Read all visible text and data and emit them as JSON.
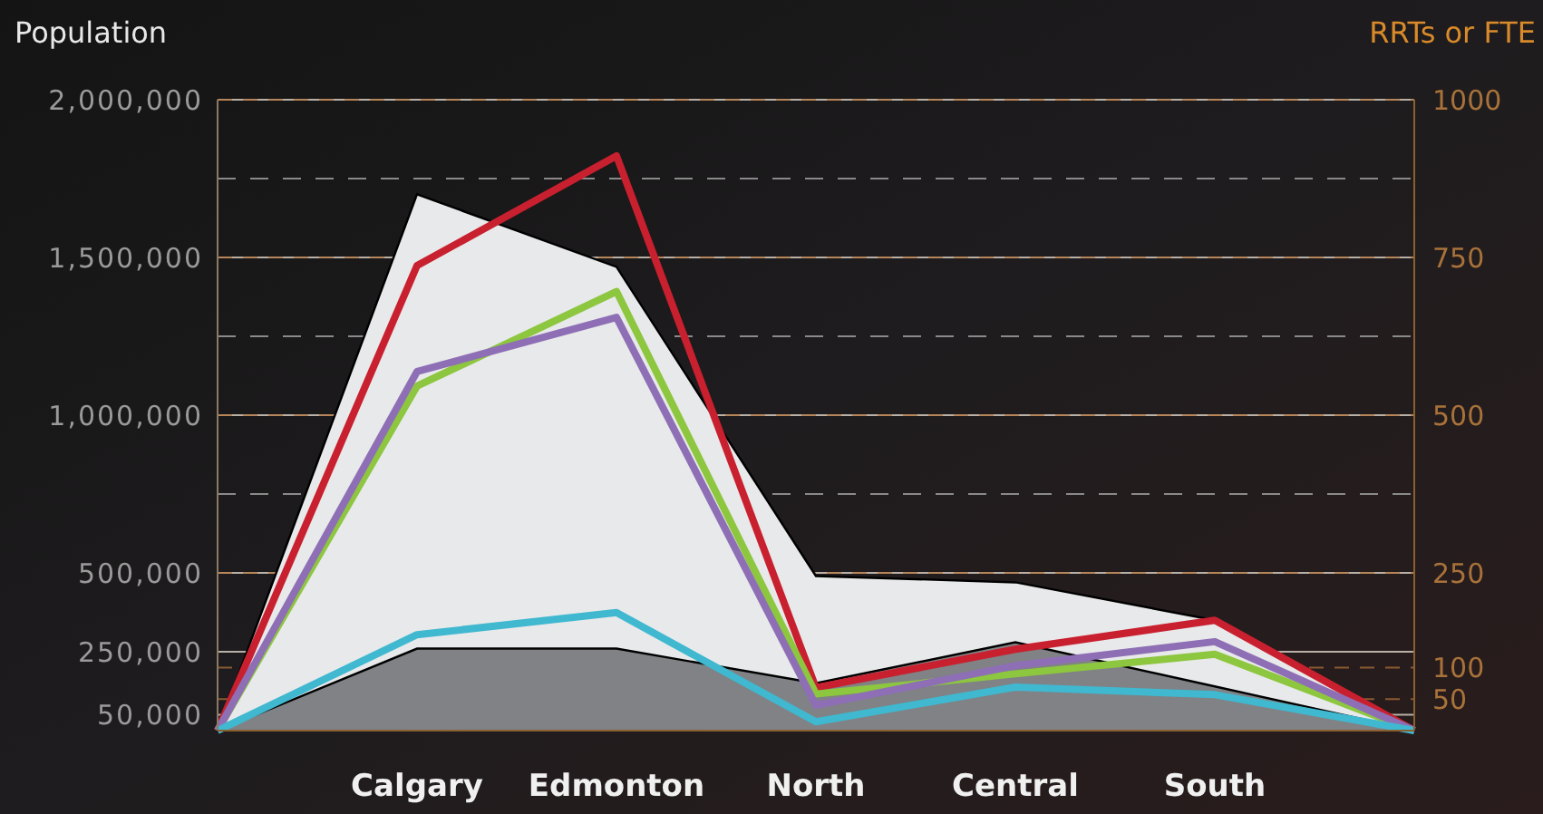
{
  "chart_data": {
    "type": "line",
    "ylabel": "Population",
    "y2label": "RRTs or FTE",
    "categories": [
      null,
      "Calgary",
      "Edmonton",
      "North",
      "Central",
      "South",
      null
    ],
    "ylim": [
      0,
      2000000
    ],
    "yticks": [
      {
        "value": 50000,
        "label": "50,000"
      },
      {
        "value": 250000,
        "label": "250,000"
      },
      {
        "value": 500000,
        "label": "500,000"
      },
      {
        "value": 750000,
        "label": null
      },
      {
        "value": 1000000,
        "label": "1,000,000"
      },
      {
        "value": 1250000,
        "label": null
      },
      {
        "value": 1500000,
        "label": "1,500,000"
      },
      {
        "value": 1750000,
        "label": null
      },
      {
        "value": 2000000,
        "label": "2,000,000"
      }
    ],
    "y2lim": [
      0,
      1000
    ],
    "y2ticks": [
      50,
      100,
      250,
      500,
      750,
      1000
    ],
    "grid": true,
    "marker": "none",
    "series": [
      {
        "type": "area",
        "color": "#e8e9ea",
        "values": [
          0,
          1700000,
          1470000,
          490000,
          470000,
          350000,
          0
        ]
      },
      {
        "type": "area",
        "color": "#808285",
        "values": [
          0,
          260000,
          260000,
          150000,
          280000,
          140000,
          0
        ]
      },
      {
        "axis": "y2",
        "color": "#c8202f",
        "values": [
          0,
          737,
          911,
          68,
          129,
          175,
          0
        ]
      },
      {
        "axis": "y2",
        "color": "#8dc63f",
        "values": [
          0,
          546,
          696,
          58,
          90,
          121,
          0
        ]
      },
      {
        "axis": "y2",
        "color": "#8e6fb5",
        "values": [
          0,
          569,
          655,
          40,
          103,
          141,
          0
        ]
      },
      {
        "axis": "y2",
        "color": "#3fb8d0",
        "values": [
          0,
          152,
          187,
          14,
          69,
          57,
          0
        ]
      }
    ]
  }
}
